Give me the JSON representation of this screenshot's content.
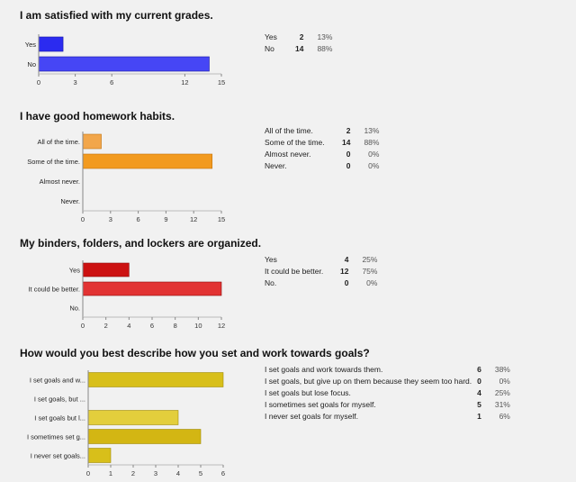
{
  "chart_data": [
    {
      "type": "bar",
      "orientation": "horizontal",
      "title": "I am satisfied with my current grades.",
      "categories": [
        "Yes",
        "No"
      ],
      "values": [
        2,
        14
      ],
      "percents": [
        "13%",
        "88%"
      ],
      "xlim": [
        0,
        15
      ],
      "ticks": [
        "0",
        "3",
        "6",
        "12",
        "15"
      ],
      "tick_values": [
        0,
        3,
        6,
        12,
        15
      ],
      "colors": [
        "#2b2bf0",
        "#4646f5"
      ],
      "border": "#1414a0"
    },
    {
      "type": "bar",
      "orientation": "horizontal",
      "title": "I have good homework habits.",
      "categories": [
        "All of the time.",
        "Some of the time.",
        "Almost never.",
        "Never."
      ],
      "values": [
        2,
        14,
        0,
        0
      ],
      "percents": [
        "13%",
        "88%",
        "0%",
        "0%"
      ],
      "xlim": [
        0,
        15
      ],
      "ticks": [
        "0",
        "3",
        "6",
        "9",
        "12",
        "15"
      ],
      "tick_values": [
        0,
        3,
        6,
        9,
        12,
        15
      ],
      "colors": [
        "#f2a64a",
        "#f29a1f",
        "#f29a1f",
        "#f29a1f"
      ],
      "border": "#c27410"
    },
    {
      "type": "bar",
      "orientation": "horizontal",
      "title": "My binders, folders, and lockers are organized.",
      "categories": [
        "Yes",
        "It could be better.",
        "No."
      ],
      "values": [
        4,
        12,
        0
      ],
      "percents": [
        "25%",
        "75%",
        "0%"
      ],
      "xlim": [
        0,
        12
      ],
      "ticks": [
        "0",
        "2",
        "4",
        "6",
        "8",
        "10",
        "12"
      ],
      "tick_values": [
        0,
        2,
        4,
        6,
        8,
        10,
        12
      ],
      "colors": [
        "#cc1111",
        "#e23333",
        "#e23333"
      ],
      "border": "#8c0a0a"
    },
    {
      "type": "bar",
      "orientation": "horizontal",
      "title": "How would you best describe how you set and work towards goals?",
      "categories": [
        "I set goals and w...",
        "I set goals, but ...",
        "I set goals but l...",
        "I sometimes set g...",
        "I never set goals..."
      ],
      "summary_labels": [
        "I set goals and work towards them.",
        "I set goals, but give up on them because they seem too hard.",
        "I set goals but lose focus.",
        "I sometimes set goals for myself.",
        "I never set goals for myself."
      ],
      "values": [
        6,
        0,
        4,
        5,
        1
      ],
      "percents": [
        "38%",
        "0%",
        "25%",
        "31%",
        "6%"
      ],
      "xlim": [
        0,
        6
      ],
      "ticks": [
        "0",
        "1",
        "2",
        "3",
        "4",
        "5",
        "6"
      ],
      "tick_values": [
        0,
        1,
        2,
        3,
        4,
        5,
        6
      ],
      "colors": [
        "#d8bf1a",
        "#d8bf1a",
        "#e3ce3c",
        "#d3b613",
        "#d8bf1a"
      ],
      "border": "#a08c0a"
    }
  ]
}
